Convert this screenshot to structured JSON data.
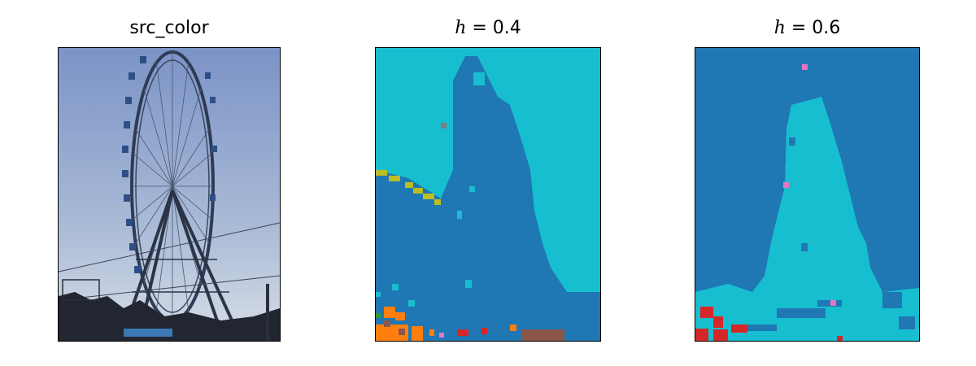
{
  "panels": [
    {
      "title": "src_color",
      "var": "",
      "eq": ""
    },
    {
      "title": "",
      "var": "h",
      "eq": " = 0.4"
    },
    {
      "title": "",
      "var": "h",
      "eq": " = 0.6"
    }
  ],
  "colors": {
    "dark_blue": "#1f77b4",
    "cyan": "#17becf",
    "olive": "#bcbd22",
    "orange": "#ff7f0e",
    "red": "#d62728",
    "brown": "#8c564b",
    "pink": "#e377c2",
    "gray": "#7f7f7f",
    "sky_top": "#7f97c9",
    "sky_bottom": "#c9d4e4",
    "structure": "#2d3a52"
  }
}
